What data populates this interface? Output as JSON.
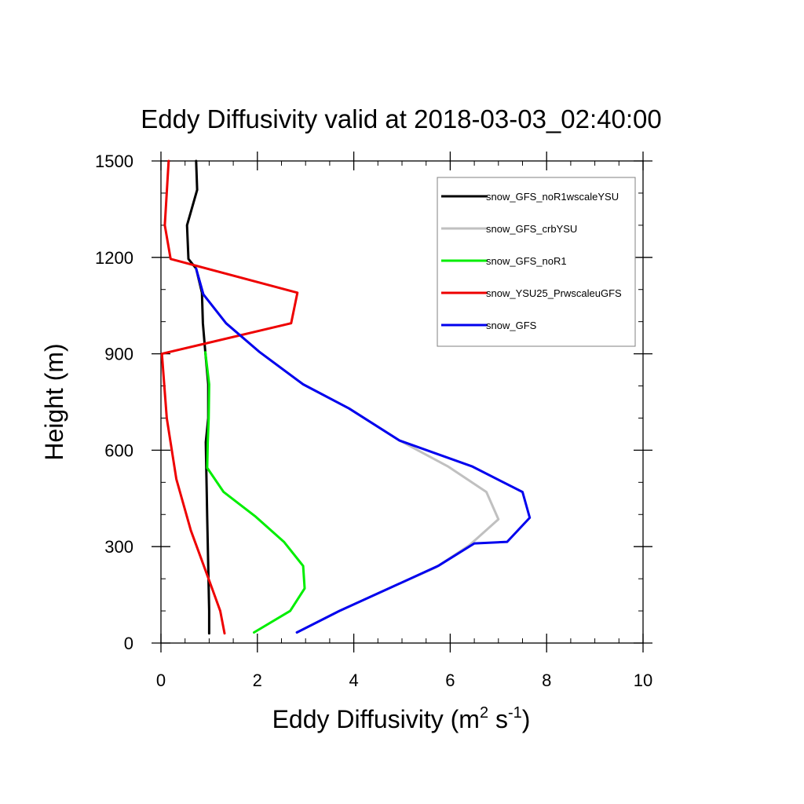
{
  "chart_data": {
    "type": "line",
    "title": "Eddy Diffusivity valid at 2018-03-03_02:40:00",
    "xlabel": {
      "main": "Eddy Diffusivity (m",
      "sup1": "2",
      "mid": " s",
      "sup2": "-1",
      "end": ")"
    },
    "ylabel": "Height (m)",
    "xlim": [
      0,
      10
    ],
    "ylim": [
      0,
      1500
    ],
    "xticks": [
      0,
      2,
      4,
      6,
      8,
      10
    ],
    "yticks": [
      0,
      300,
      600,
      900,
      1200,
      1500
    ],
    "xtick_labels": [
      "0",
      "2",
      "4",
      "6",
      "8",
      "10"
    ],
    "ytick_labels": [
      "0",
      "300",
      "600",
      "900",
      "1200",
      "1500"
    ],
    "grid": false,
    "legend_position": "top-right",
    "series": [
      {
        "name": "snow_GFS_noR1wscaleYSU",
        "color": "#000000",
        "points": [
          [
            1.0,
            30
          ],
          [
            1.0,
            100
          ],
          [
            0.99,
            170
          ],
          [
            0.98,
            240
          ],
          [
            0.97,
            310
          ],
          [
            0.96,
            390
          ],
          [
            0.95,
            470
          ],
          [
            0.94,
            545
          ],
          [
            0.93,
            625
          ],
          [
            0.98,
            700
          ],
          [
            0.98,
            805
          ],
          [
            0.92,
            905
          ],
          [
            0.87,
            995
          ],
          [
            0.85,
            1090
          ],
          [
            0.73,
            1165
          ],
          [
            0.57,
            1195
          ],
          [
            0.54,
            1300
          ],
          [
            0.75,
            1410
          ],
          [
            0.73,
            1500
          ]
        ]
      },
      {
        "name": "snow_GFS_crbYSU",
        "color": "#c0c0c0",
        "points": [
          [
            2.82,
            33
          ],
          [
            3.7,
            100
          ],
          [
            4.8,
            175
          ],
          [
            5.7,
            235
          ],
          [
            6.4,
            305
          ],
          [
            7.0,
            385
          ],
          [
            6.75,
            470
          ],
          [
            5.95,
            550
          ],
          [
            4.95,
            630
          ],
          [
            3.9,
            730
          ],
          [
            2.95,
            805
          ],
          [
            2.05,
            905
          ],
          [
            1.35,
            995
          ],
          [
            0.88,
            1085
          ],
          [
            0.73,
            1165
          ]
        ]
      },
      {
        "name": "snow_GFS_noR1",
        "color": "#00ee00",
        "points": [
          [
            1.93,
            33
          ],
          [
            2.68,
            100
          ],
          [
            2.98,
            170
          ],
          [
            2.95,
            240
          ],
          [
            2.55,
            315
          ],
          [
            1.95,
            395
          ],
          [
            1.3,
            470
          ],
          [
            0.96,
            545
          ],
          [
            0.97,
            625
          ],
          [
            0.99,
            700
          ],
          [
            1.0,
            805
          ],
          [
            0.92,
            905
          ]
        ]
      },
      {
        "name": "snow_YSU25_PrwscaleuGFS",
        "color": "#ee0000",
        "points": [
          [
            1.32,
            30
          ],
          [
            1.23,
            100
          ],
          [
            1.0,
            195
          ],
          [
            0.62,
            350
          ],
          [
            0.32,
            510
          ],
          [
            0.12,
            700
          ],
          [
            0.02,
            900
          ],
          [
            2.7,
            995
          ],
          [
            2.83,
            1090
          ],
          [
            0.2,
            1195
          ],
          [
            0.08,
            1300
          ],
          [
            0.16,
            1500
          ]
        ]
      },
      {
        "name": "snow_GFS",
        "color": "#0000ee",
        "points": [
          [
            2.82,
            33
          ],
          [
            3.7,
            100
          ],
          [
            4.8,
            175
          ],
          [
            5.75,
            240
          ],
          [
            6.5,
            310
          ],
          [
            7.18,
            315
          ],
          [
            7.65,
            390
          ],
          [
            7.5,
            470
          ],
          [
            6.45,
            550
          ],
          [
            4.95,
            630
          ],
          [
            3.9,
            730
          ],
          [
            2.95,
            805
          ],
          [
            2.05,
            905
          ],
          [
            1.35,
            995
          ],
          [
            0.88,
            1085
          ],
          [
            0.73,
            1165
          ]
        ]
      }
    ]
  }
}
